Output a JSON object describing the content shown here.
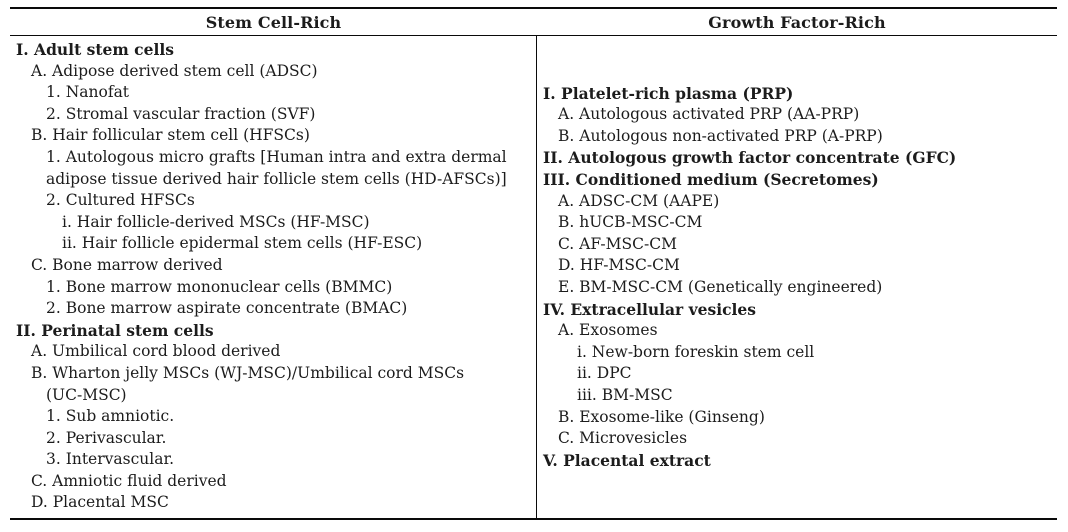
{
  "table": {
    "headers": [
      {
        "label": "Stem Cell-Rich"
      },
      {
        "label": "Growth Factor-Rich"
      }
    ],
    "columns": [
      {
        "id": "stem-cell-rich",
        "lines": [
          {
            "text": "I. Adult stem cells",
            "indent": 0,
            "bold": true
          },
          {
            "text": "A. Adipose derived stem cell (ADSC)",
            "indent": 1,
            "bold": false
          },
          {
            "text": "1. Nanofat",
            "indent": 2,
            "bold": false
          },
          {
            "text": "2. Stromal vascular fraction (SVF)",
            "indent": 2,
            "bold": false
          },
          {
            "text": "B. Hair follicular stem cell (HFSCs)",
            "indent": 1,
            "bold": false
          },
          {
            "text": "1. Autologous micro grafts [Human intra and extra dermal",
            "indent": 2,
            "bold": false
          },
          {
            "text": "adipose tissue derived hair follicle stem cells (HD-AFSCs)]",
            "indent": 2,
            "bold": false
          },
          {
            "text": "2. Cultured HFSCs",
            "indent": 2,
            "bold": false
          },
          {
            "text": "i. Hair follicle-derived MSCs (HF-MSC)",
            "indent": 3,
            "bold": false
          },
          {
            "text": "ii. Hair follicle epidermal stem cells (HF-ESC)",
            "indent": 3,
            "bold": false
          },
          {
            "text": "C. Bone marrow derived",
            "indent": 1,
            "bold": false
          },
          {
            "text": "1. Bone marrow mononuclear cells (BMMC)",
            "indent": 2,
            "bold": false
          },
          {
            "text": "2. Bone marrow aspirate concentrate (BMAC)",
            "indent": 2,
            "bold": false
          },
          {
            "text": "II. Perinatal stem cells",
            "indent": 0,
            "bold": true
          },
          {
            "text": "A. Umbilical cord blood derived",
            "indent": 1,
            "bold": false
          },
          {
            "text": "B. Wharton jelly MSCs (WJ-MSC)/Umbilical cord MSCs",
            "indent": 1,
            "bold": false
          },
          {
            "text": "(UC-MSC)",
            "indent": 2,
            "bold": false
          },
          {
            "text": "1. Sub amniotic.",
            "indent": 2,
            "bold": false
          },
          {
            "text": "2. Perivascular.",
            "indent": 2,
            "bold": false
          },
          {
            "text": "3. Intervascular.",
            "indent": 2,
            "bold": false
          },
          {
            "text": "C. Amniotic fluid derived",
            "indent": 1,
            "bold": false
          },
          {
            "text": "D. Placental MSC",
            "indent": 1,
            "bold": false
          }
        ]
      },
      {
        "id": "growth-factor-rich",
        "lines": [
          {
            "text": "I. Platelet-rich plasma (PRP)",
            "indent": 0,
            "bold": true
          },
          {
            "text": "A. Autologous activated PRP (AA-PRP)",
            "indent": 1,
            "bold": false
          },
          {
            "text": "B. Autologous non-activated PRP (A-PRP)",
            "indent": 1,
            "bold": false
          },
          {
            "text": "II. Autologous growth factor concentrate (GFC)",
            "indent": 0,
            "bold": true
          },
          {
            "text": "III. Conditioned medium (Secretomes)",
            "indent": 0,
            "bold": true
          },
          {
            "text": "A. ADSC-CM (AAPE)",
            "indent": 1,
            "bold": false
          },
          {
            "text": "B. hUCB-MSC-CM",
            "indent": 1,
            "bold": false
          },
          {
            "text": "C. AF-MSC-CM",
            "indent": 1,
            "bold": false
          },
          {
            "text": "D. HF-MSC-CM",
            "indent": 1,
            "bold": false
          },
          {
            "text": "E. BM-MSC-CM (Genetically engineered)",
            "indent": 1,
            "bold": false
          },
          {
            "text": "IV. Extracellular vesicles",
            "indent": 0,
            "bold": true
          },
          {
            "text": "A. Exosomes",
            "indent": 1,
            "bold": false
          },
          {
            "text": "i. New-born foreskin stem cell",
            "indent": 2,
            "bold": false
          },
          {
            "text": "ii. DPC",
            "indent": 2,
            "bold": false
          },
          {
            "text": "iii. BM-MSC",
            "indent": 2,
            "bold": false
          },
          {
            "text": "B. Exosome-like (Ginseng)",
            "indent": 1,
            "bold": false
          },
          {
            "text": "C. Microvesicles",
            "indent": 1,
            "bold": false
          },
          {
            "text": "V. Placental extract",
            "indent": 0,
            "bold": true
          }
        ]
      }
    ]
  },
  "colors": {
    "text": "#1c1c1c",
    "rule": "#0a0a0a",
    "background": "#ffffff"
  }
}
